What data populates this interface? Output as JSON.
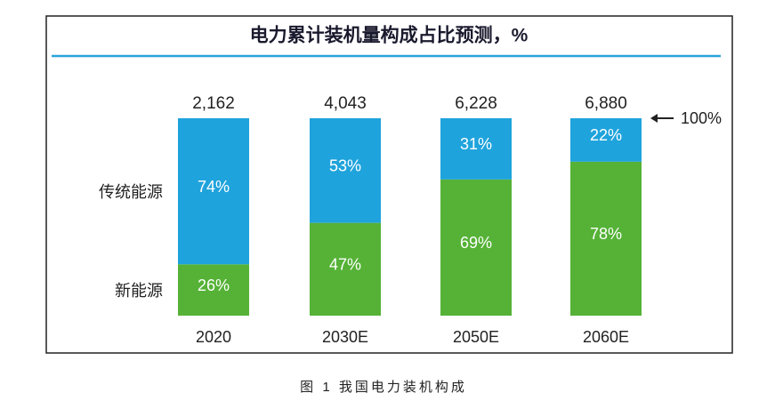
{
  "chart_data": {
    "type": "stacked_bar",
    "title": "电力累计装机量构成占比预测，%",
    "categories": [
      "2020",
      "2030E",
      "2050E",
      "2060E"
    ],
    "series": [
      {
        "name": "新能源",
        "color": "#55b236",
        "values": [
          26,
          47,
          69,
          78
        ],
        "value_labels": [
          "26%",
          "47%",
          "69%",
          "78%"
        ]
      },
      {
        "name": "传统能源",
        "color": "#1fa3dc",
        "values": [
          74,
          53,
          31,
          22
        ],
        "value_labels": [
          "74%",
          "53%",
          "31%",
          "22%"
        ]
      }
    ],
    "totals": {
      "values": [
        2162,
        4043,
        6228,
        6880
      ],
      "value_labels": [
        "2,162",
        "4,043",
        "6,228",
        "6,880"
      ]
    },
    "annotation": {
      "value": 100,
      "label": "100%"
    },
    "ylim": [
      0,
      100
    ],
    "caption": "图 1 我国电力装机构成"
  }
}
